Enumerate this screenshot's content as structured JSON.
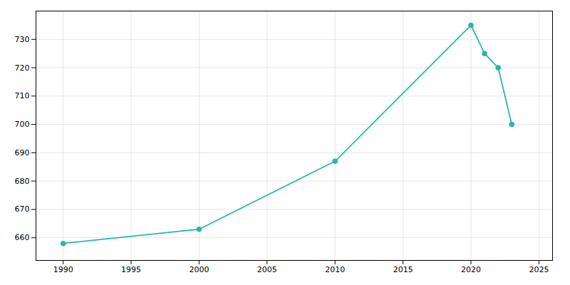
{
  "chart_data": {
    "type": "line",
    "x": [
      1990,
      2000,
      2010,
      2020,
      2021,
      2022,
      2023
    ],
    "values": [
      658,
      663,
      687,
      735,
      725,
      720,
      700
    ],
    "color": "#2ab5b0",
    "marker": "o",
    "xlim": [
      1988,
      2026
    ],
    "ylim": [
      652,
      740
    ],
    "xticks": [
      1990,
      1995,
      2000,
      2005,
      2010,
      2015,
      2020,
      2025
    ],
    "yticks": [
      660,
      670,
      680,
      690,
      700,
      710,
      720,
      730
    ],
    "grid": true
  }
}
